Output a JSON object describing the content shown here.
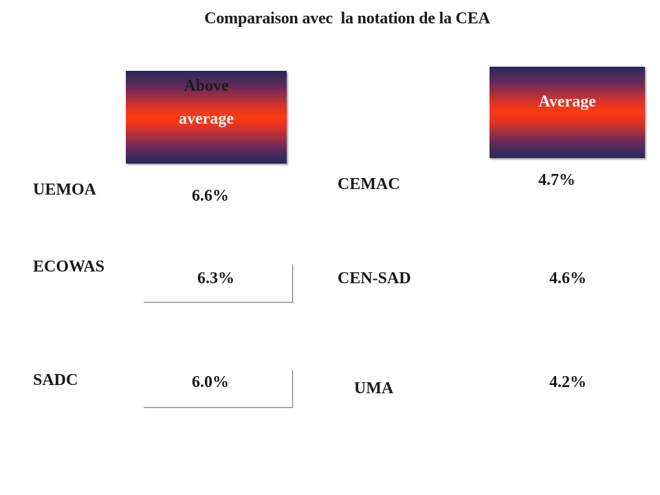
{
  "title": "Comparaison avec  la notation de la CEA",
  "groups": {
    "above_average": {
      "label_line1": "Above",
      "label_line2": "average",
      "items": [
        {
          "name": "UEMOA",
          "value": "6.6%"
        },
        {
          "name": "ECOWAS",
          "value": "6.3%"
        },
        {
          "name": "SADC",
          "value": "6.0%"
        }
      ]
    },
    "average": {
      "label": "Average",
      "items": [
        {
          "name": "CEMAC",
          "value": "4.7%"
        },
        {
          "name": "CEN-SAD",
          "value": "4.6%"
        },
        {
          "name": "UMA",
          "value": "4.2%"
        }
      ]
    }
  },
  "colors": {
    "badge_center": "#ff3a10",
    "badge_edge": "#232a5c"
  }
}
